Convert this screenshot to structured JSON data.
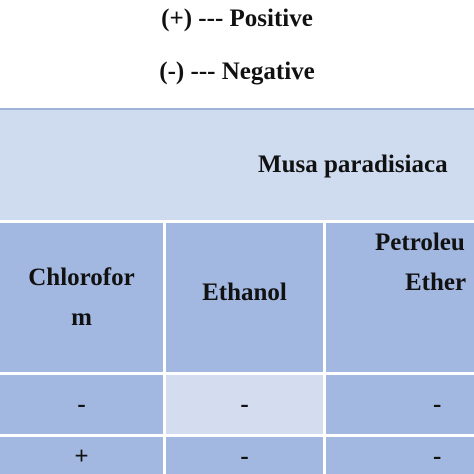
{
  "legend": {
    "positive": "(+) --- Positive",
    "negative": "(-) --- Negative"
  },
  "table": {
    "title": "Musa paradisiaca",
    "headers": [
      {
        "line1": "Chlorofor",
        "line2": "m"
      },
      {
        "line1": "Ethanol",
        "line2": ""
      },
      {
        "line1": "Petroleu",
        "line2": "Ether"
      }
    ],
    "rows": [
      [
        "-",
        "-",
        "-"
      ],
      [
        "+",
        "-",
        "-"
      ]
    ],
    "colors": {
      "title_background": "#cfdcef",
      "cell_background": "#a3b8e0",
      "highlight_cell_background": "#d3ddef",
      "grid_line": "#ffffff"
    }
  }
}
